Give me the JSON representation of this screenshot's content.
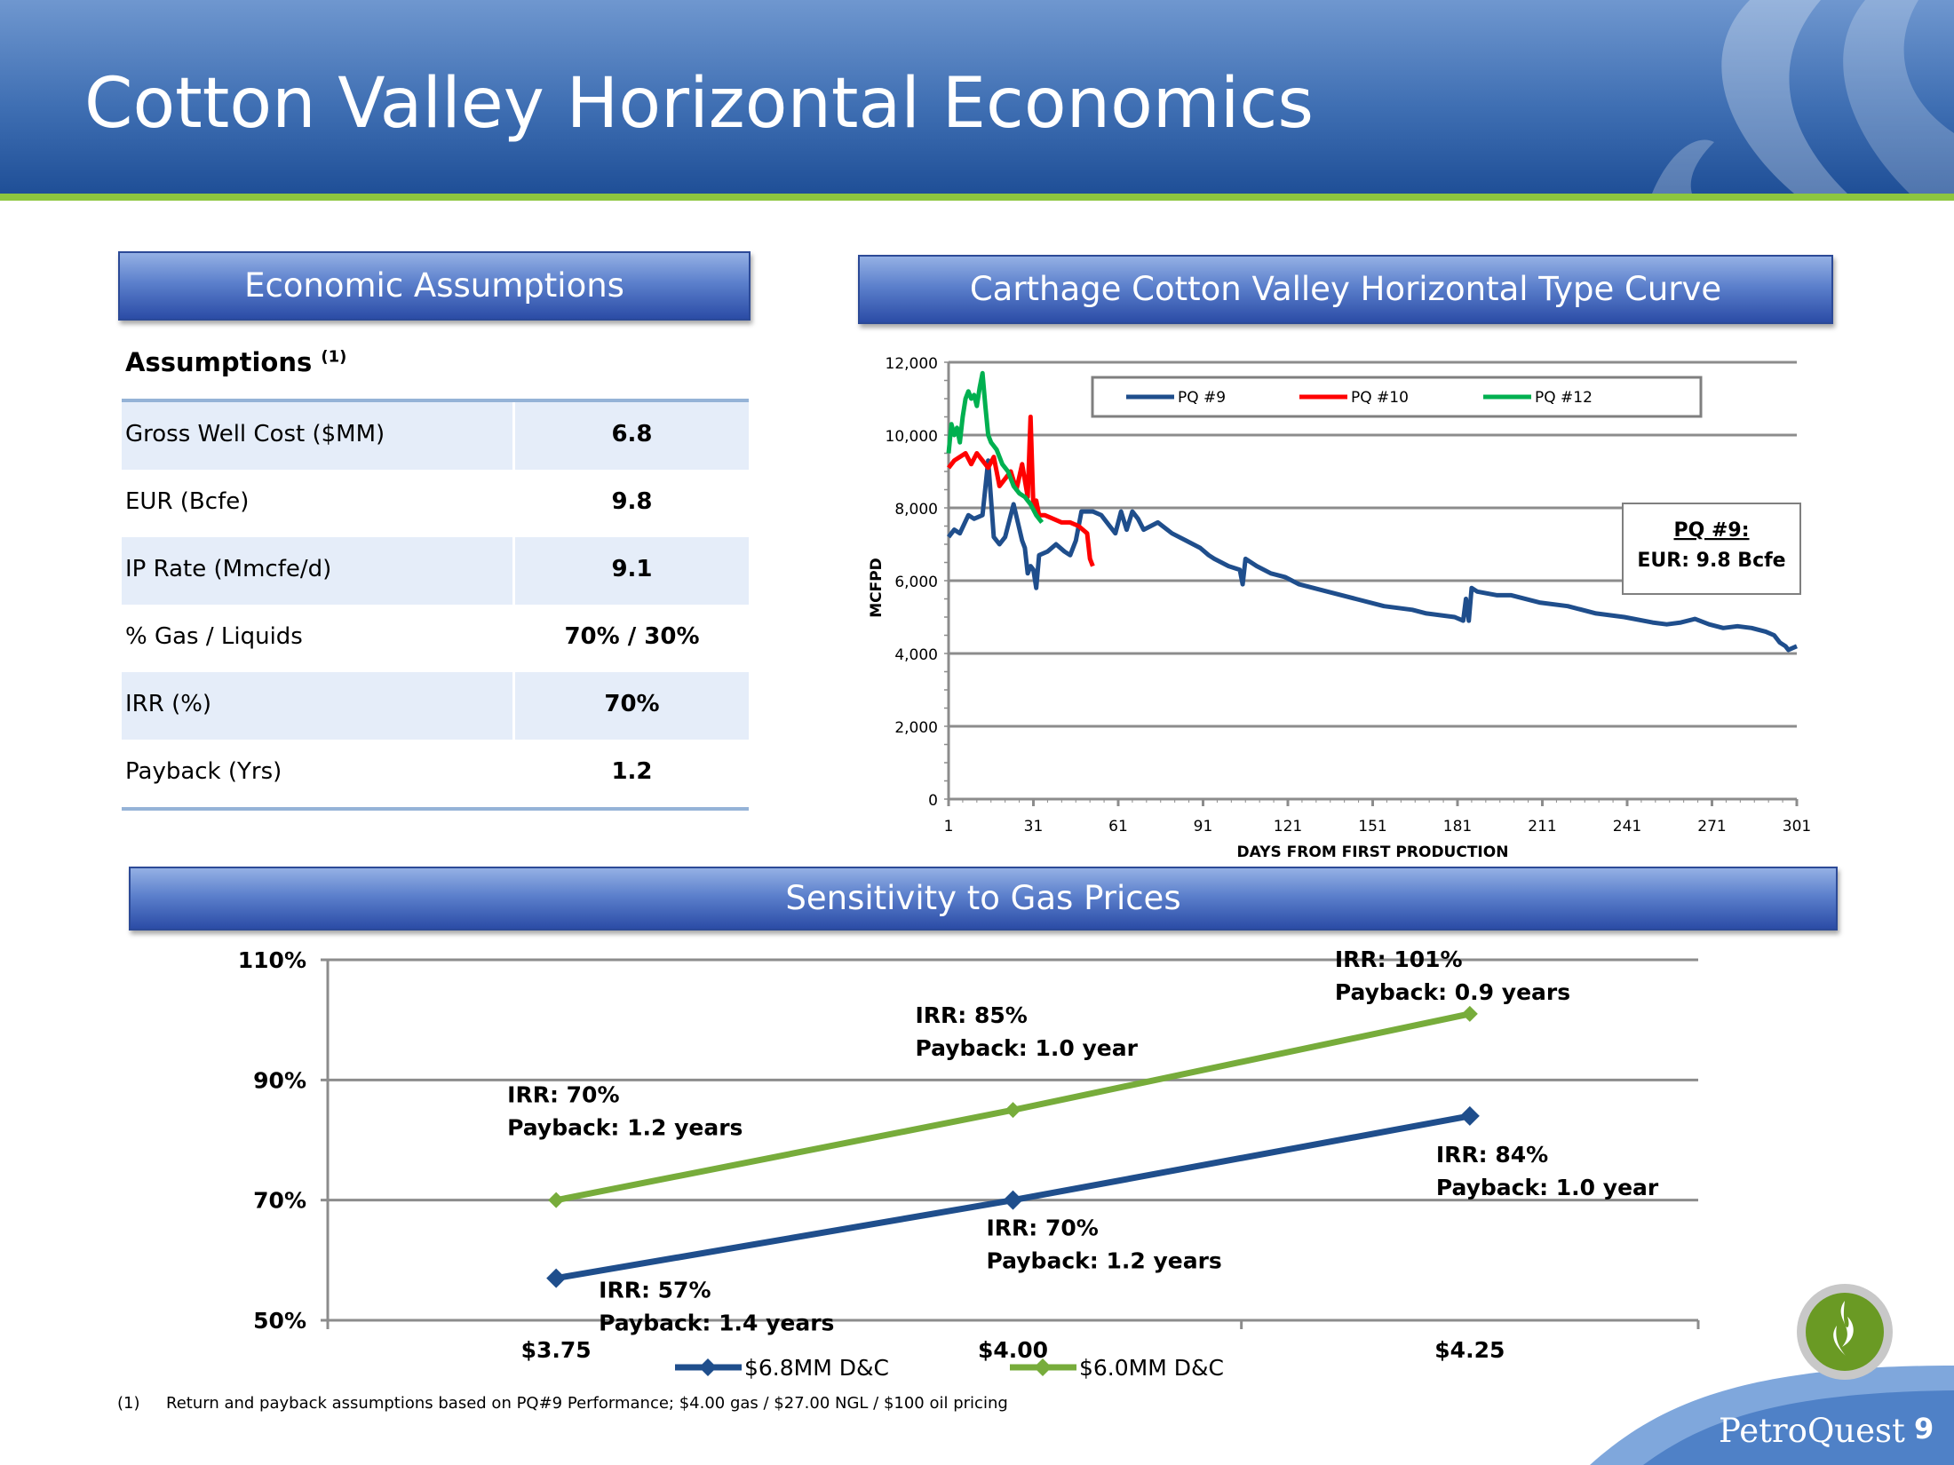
{
  "slide": {
    "title": "Cotton Valley Horizontal Economics",
    "page_number": "9",
    "logo_text": "PetroQuest",
    "footnote_number": "(1)",
    "footnote_text": "Return and payback assumptions based on PQ#9 Performance; $4.00 gas / $27.00  NGL / $100 oil pricing"
  },
  "headers": {
    "assumptions": "Economic Assumptions",
    "type_curve": "Carthage Cotton Valley Horizontal Type Curve",
    "sensitivity": "Sensitivity to Gas Prices"
  },
  "assumptions_table": {
    "heading": "Assumptions",
    "heading_note": "(1)",
    "rows": [
      {
        "label": "Gross Well Cost ($MM)",
        "value": "6.8"
      },
      {
        "label": "EUR (Bcfe)",
        "value": "9.8"
      },
      {
        "label": "IP Rate (Mmcfe/d)",
        "value": "9.1"
      },
      {
        "label": "% Gas / Liquids",
        "value": "70% / 30%"
      },
      {
        "label": "IRR (%)",
        "value": "70%"
      },
      {
        "label": "Payback (Yrs)",
        "value": "1.2"
      }
    ]
  },
  "colors": {
    "pq9": "#1f4e8c",
    "pq10": "#ff0000",
    "pq12": "#00b050",
    "d68": "#1f4e8c",
    "d60": "#77ac3b"
  },
  "chart_data": [
    {
      "type": "line",
      "xlabel": "DAYS FROM FIRST PRODUCTION",
      "ylabel": "MCFPD",
      "xlim": [
        1,
        301
      ],
      "ylim": [
        0,
        12000
      ],
      "x_ticks": [
        1,
        31,
        61,
        91,
        121,
        151,
        181,
        211,
        241,
        271,
        301
      ],
      "y_ticks": [
        0,
        2000,
        4000,
        6000,
        8000,
        10000,
        12000
      ],
      "y_tick_labels": [
        "0",
        "2,000",
        "4,000",
        "6,000",
        "8,000",
        "10,000",
        "12,000"
      ],
      "legend_position": "top",
      "grid": true,
      "annotation": {
        "title": "PQ #9:",
        "text": "EUR: 9.8 Bcfe"
      },
      "series": [
        {
          "name": "PQ #9",
          "x": [
            1,
            3,
            5,
            8,
            10,
            13,
            15,
            17,
            19,
            21,
            24,
            27,
            28,
            29,
            30,
            31,
            32,
            33,
            36,
            39,
            42,
            44,
            46,
            48,
            52,
            55,
            58,
            60,
            62,
            64,
            66,
            68,
            70,
            75,
            80,
            85,
            90,
            93,
            95,
            100,
            104,
            105,
            106,
            110,
            115,
            120,
            125,
            135,
            145,
            155,
            165,
            170,
            180,
            183,
            184,
            185,
            186,
            188,
            195,
            200,
            210,
            220,
            230,
            240,
            250,
            255,
            260,
            265,
            270,
            275,
            280,
            285,
            290,
            293,
            295,
            297,
            298,
            301
          ],
          "y": [
            7200,
            7400,
            7300,
            7800,
            7700,
            7800,
            9300,
            7200,
            7000,
            7200,
            8100,
            7100,
            6900,
            6200,
            6400,
            6300,
            5800,
            6700,
            6800,
            7000,
            6800,
            6700,
            7100,
            7900,
            7900,
            7800,
            7500,
            7300,
            7900,
            7400,
            7900,
            7700,
            7400,
            7600,
            7300,
            7100,
            6900,
            6700,
            6600,
            6400,
            6300,
            5900,
            6600,
            6400,
            6200,
            6100,
            5900,
            5700,
            5500,
            5300,
            5200,
            5100,
            5000,
            4900,
            5500,
            4900,
            5800,
            5700,
            5600,
            5600,
            5400,
            5300,
            5100,
            5000,
            4850,
            4800,
            4850,
            4950,
            4800,
            4700,
            4750,
            4700,
            4600,
            4500,
            4300,
            4200,
            4100,
            4200
          ]
        },
        {
          "name": "PQ #10",
          "x": [
            1,
            3,
            5,
            7,
            9,
            11,
            13,
            15,
            17,
            19,
            21,
            23,
            25,
            27,
            29,
            30,
            31,
            32,
            33,
            35,
            38,
            41,
            44,
            47,
            50,
            51,
            52
          ],
          "y": [
            9100,
            9300,
            9400,
            9500,
            9200,
            9500,
            9300,
            9100,
            9400,
            8600,
            8800,
            9000,
            8500,
            9200,
            8300,
            10500,
            8000,
            8200,
            7800,
            7800,
            7700,
            7600,
            7600,
            7500,
            7300,
            6600,
            6400
          ]
        },
        {
          "name": "PQ #12",
          "x": [
            1,
            2,
            3,
            4,
            5,
            6,
            7,
            8,
            9,
            10,
            11,
            12,
            13,
            14,
            15,
            16,
            17,
            18,
            19,
            20,
            22,
            24,
            26,
            28,
            30,
            32,
            34
          ],
          "y": [
            9500,
            10300,
            10000,
            10200,
            9800,
            10500,
            11000,
            11200,
            11000,
            11100,
            10800,
            11300,
            11700,
            10800,
            10000,
            9800,
            9700,
            9600,
            9400,
            9200,
            9000,
            8600,
            8400,
            8300,
            8100,
            7800,
            7600
          ]
        }
      ]
    },
    {
      "type": "line",
      "categories": [
        "$3.75",
        "$4.00",
        "$4.25"
      ],
      "ylim": [
        0.5,
        1.1
      ],
      "y_ticks": [
        0.5,
        0.7,
        0.9,
        1.1
      ],
      "y_tick_labels": [
        "50%",
        "70%",
        "90%",
        "110%"
      ],
      "legend_position": "bottom",
      "grid": true,
      "series": [
        {
          "name": "$6.8MM D&C",
          "values": [
            0.57,
            0.7,
            0.84
          ],
          "labels": [
            [
              "IRR: 57%",
              "Payback: 1.4 years"
            ],
            [
              "IRR: 70%",
              "Payback:  1.2 years"
            ],
            [
              "IRR: 84%",
              "Payback: 1.0 year"
            ]
          ]
        },
        {
          "name": "$6.0MM D&C",
          "values": [
            0.7,
            0.85,
            1.01
          ],
          "labels": [
            [
              "IRR: 70%",
              "Payback: 1.2 years"
            ],
            [
              "IRR: 85%",
              "Payback: 1.0 year"
            ],
            [
              "IRR: 101%",
              "Payback:  0.9 years"
            ]
          ]
        }
      ]
    }
  ]
}
